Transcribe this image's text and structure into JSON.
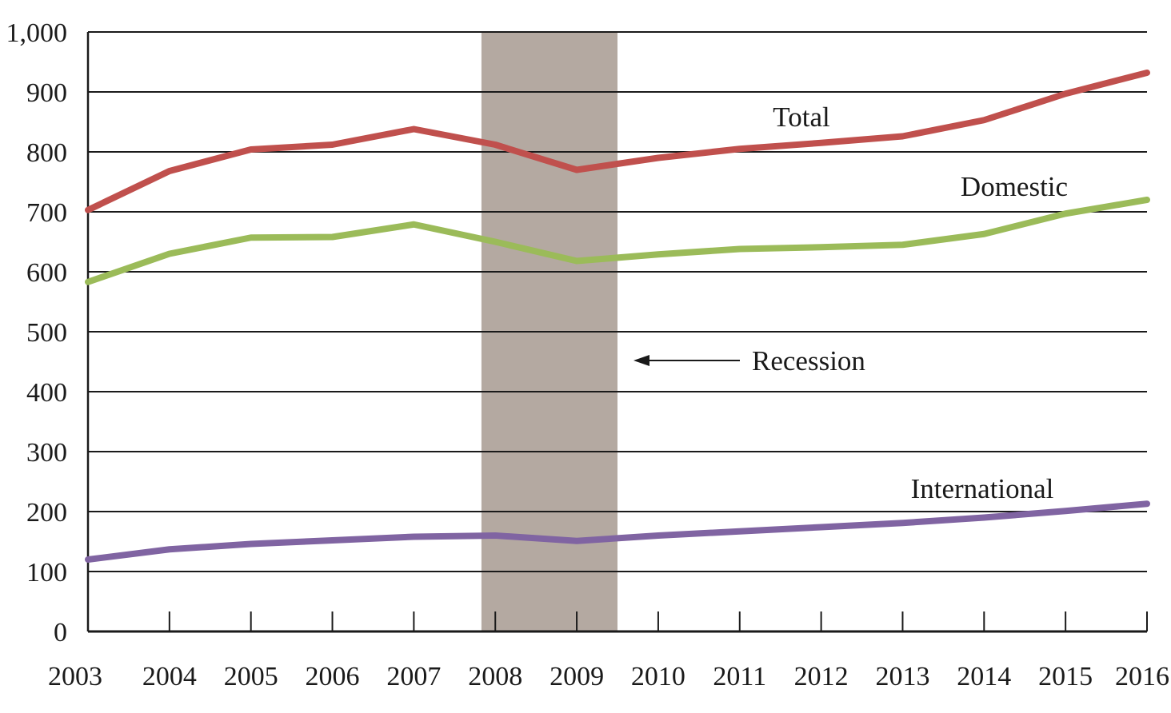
{
  "chart_data": {
    "type": "line",
    "x": [
      "2003",
      "2004",
      "2005",
      "2006",
      "2007",
      "2008",
      "2009",
      "2010",
      "2011",
      "2012",
      "2013",
      "2014",
      "2015",
      "2016"
    ],
    "y_ticks": [
      "0",
      "100",
      "200",
      "300",
      "400",
      "500",
      "600",
      "700",
      "800",
      "900",
      "1,000"
    ],
    "ylim": [
      0,
      1000
    ],
    "grid": true,
    "series": [
      {
        "name": "Total",
        "color": "#c0504d",
        "values": [
          703,
          768,
          804,
          812,
          838,
          812,
          770,
          790,
          805,
          815,
          826,
          853,
          897,
          932
        ]
      },
      {
        "name": "Domestic",
        "color": "#9bbb59",
        "values": [
          583,
          630,
          657,
          658,
          679,
          650,
          618,
          629,
          638,
          641,
          645,
          663,
          697,
          720
        ]
      },
      {
        "name": "International",
        "color": "#8064a2",
        "values": [
          120,
          137,
          146,
          152,
          158,
          160,
          151,
          160,
          167,
          174,
          181,
          190,
          201,
          213
        ]
      }
    ],
    "recession": {
      "start": 2007.83,
      "end": 2009.5,
      "color": "#b4a9a1",
      "label": "Recession"
    }
  }
}
